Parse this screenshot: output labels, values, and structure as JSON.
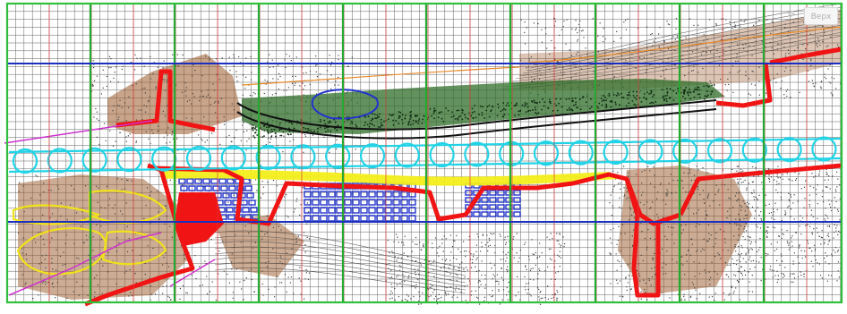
{
  "toolbar": {
    "view_button_label": "Верх",
    "nav_icon": "pan-icon"
  },
  "colors": {
    "canvas_bg": "#ffffff",
    "fine_grid": "#1a1a1a",
    "sheet_grid_v": "#e23b3b",
    "major_grid_v": "#22aa33",
    "major_grid_h": "#1a2fbf",
    "frame": "#2fbf3a",
    "corridor": "#22d3e6",
    "boundary": "#f01414",
    "road": "#f3ee1a",
    "buildings": "#2233cc",
    "vegetation": "#2f6e2a",
    "terrain": "#9a5a2a",
    "contours": "#444444",
    "yellow_outline": "#f0e21a",
    "magenta": "#cc33cc",
    "orange_lines": "#e88a2a"
  }
}
